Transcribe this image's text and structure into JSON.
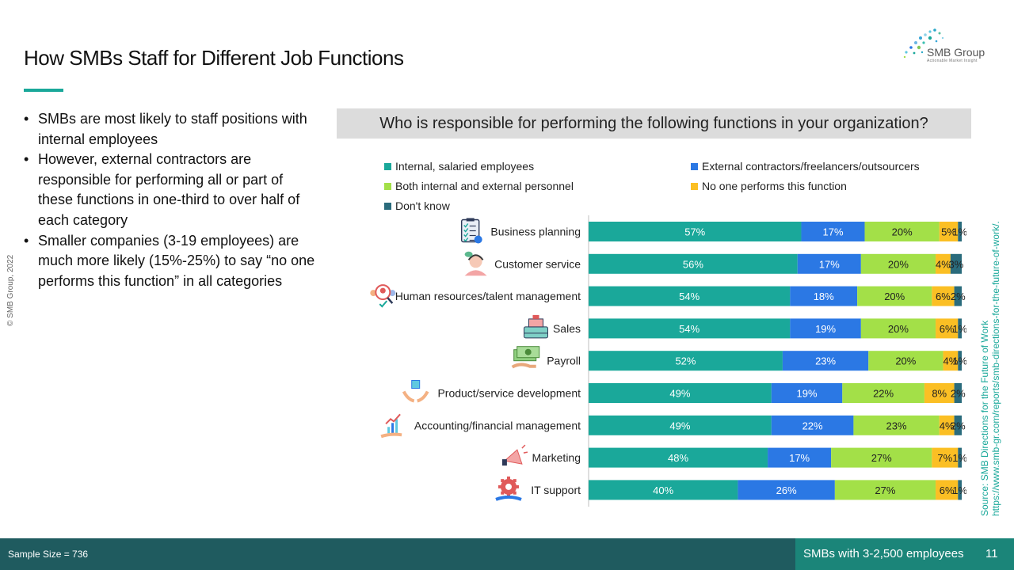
{
  "title": "How SMBs Staff for Different Job Functions",
  "logo": {
    "name": "SMB Group",
    "tagline": "Actionable Market Insight"
  },
  "copyright": "© SMB Group, 2022",
  "bullets": [
    "SMBs are most likely to staff positions with internal employees",
    "However, external contractors are responsible for performing all or part of these functions in one-third to over half of each category",
    "Smaller companies (3-19 employees) are much more likely  (15%-25%) to say “no one performs this function” in all categories"
  ],
  "question": "Who is responsible for performing the following functions in your organization?",
  "source": {
    "line1": "Source:  SMB Directions for the Future of Work",
    "line2": "https://www.smb-gr.com/reports/smb-directions-for-the-future-of-work/."
  },
  "footer": {
    "sample_size": "Sample Size = 736",
    "segment": "SMBs with 3-2,500 employees",
    "page": "11"
  },
  "colors": {
    "internal": "#1aa89a",
    "external": "#2b78e4",
    "both": "#a3e048",
    "none": "#fbbf24",
    "dontknow": "#2a6b7c"
  },
  "chart_data": {
    "type": "bar",
    "orientation": "horizontal",
    "stacked": true,
    "percent_stacked": true,
    "xlim": [
      0,
      100
    ],
    "legend_position": "top",
    "categories": [
      "Business planning",
      "Customer service",
      "Human resources/talent management",
      "Sales",
      "Payroll",
      "Product/service development",
      "Accounting/financial management",
      "Marketing",
      "IT support"
    ],
    "series": [
      {
        "name": "Internal, salaried employees",
        "values": [
          57,
          56,
          54,
          54,
          52,
          49,
          49,
          48,
          40
        ]
      },
      {
        "name": "External contractors/freelancers/outsourcers",
        "values": [
          17,
          17,
          18,
          19,
          23,
          19,
          22,
          17,
          26
        ]
      },
      {
        "name": "Both internal and external personnel",
        "values": [
          20,
          20,
          20,
          20,
          20,
          22,
          23,
          27,
          27
        ]
      },
      {
        "name": "No one performs this function",
        "values": [
          5,
          4,
          6,
          6,
          4,
          8,
          4,
          7,
          6
        ]
      },
      {
        "name": "Don't know",
        "values": [
          1,
          3,
          2,
          1,
          1,
          2,
          2,
          1,
          1
        ]
      }
    ],
    "labels": [
      [
        "57%",
        "17%",
        "20%",
        "5%",
        "1%"
      ],
      [
        "56%",
        "17%",
        "20%",
        "4%",
        "3%"
      ],
      [
        "54%",
        "18%",
        "20%",
        "6%",
        "2%"
      ],
      [
        "54%",
        "19%",
        "20%",
        "6%",
        "1%"
      ],
      [
        "52%",
        "23%",
        "20%",
        "4%",
        "1%"
      ],
      [
        "49%",
        "19%",
        "22%",
        "8%",
        "2%"
      ],
      [
        "49%",
        "22%",
        "23%",
        "4%",
        "2%"
      ],
      [
        "48%",
        "17%",
        "27%",
        "7%",
        "1%"
      ],
      [
        "40%",
        "26%",
        "27%",
        "6%",
        "1%"
      ]
    ],
    "icons": [
      "clipboard-checklist-icon",
      "headset-agent-icon",
      "people-search-icon",
      "cash-register-icon",
      "cash-hand-icon",
      "box-hands-icon",
      "growth-chart-hand-icon",
      "megaphone-icon",
      "gear-support-icon"
    ]
  }
}
